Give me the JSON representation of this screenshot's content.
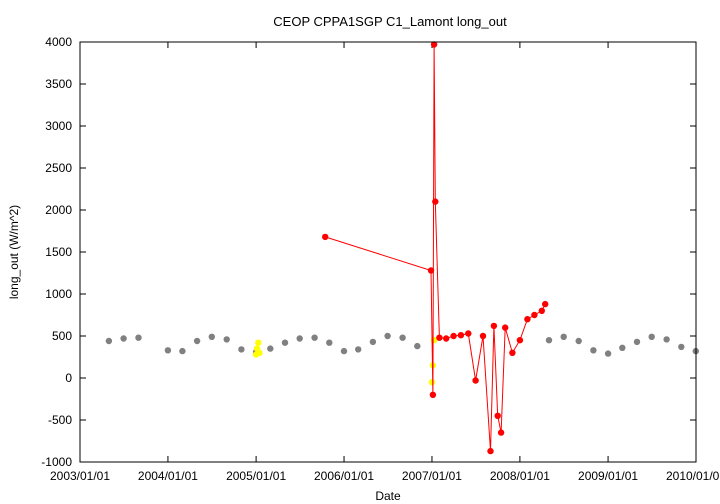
{
  "chart_data": {
    "type": "scatter",
    "title": "CEOP CPPA1SGP C1_Lamont  long_out",
    "xlabel": "Date",
    "ylabel": "long_out (W/m^2)",
    "xlim": [
      "2003/01/01",
      "2010/01/01"
    ],
    "ylim": [
      -1000,
      4000
    ],
    "x_ticks": [
      "2003/01/01",
      "2004/01/01",
      "2005/01/01",
      "2006/01/01",
      "2007/01/01",
      "2008/01/01",
      "2009/01/01",
      "2010/01/01"
    ],
    "y_ticks": [
      -1000,
      -500,
      0,
      500,
      1000,
      1500,
      2000,
      2500,
      3000,
      3500,
      4000
    ],
    "grid": false,
    "legend": "none",
    "colors": {
      "normal": "#808080",
      "flagged_yellow": "#ffff00",
      "flagged_red": "#ff0000"
    },
    "series": [
      {
        "color": "#808080",
        "style": "points",
        "x": [
          "2003/05/01",
          "2003/07/01",
          "2003/09/01",
          "2003/11/01",
          "2004/01/01",
          "2004/03/01",
          "2004/05/01",
          "2004/07/01",
          "2004/09/01",
          "2004/11/01",
          "2005/01/01",
          "2005/03/01",
          "2005/05/01",
          "2005/07/01",
          "2005/09/01",
          "2005/11/01",
          "2006/01/01",
          "2006/03/01",
          "2006/05/01",
          "2006/07/01",
          "2006/09/01",
          "2006/11/01",
          "2008/05/01",
          "2008/07/01",
          "2008/09/01",
          "2008/11/01",
          "2009/01/01",
          "2009/03/01",
          "2009/05/01",
          "2009/07/01",
          "2009/09/01",
          "2009/11/01",
          "2009/12/31"
        ],
        "y": [
          440,
          470,
          480,
          null,
          330,
          320,
          440,
          490,
          460,
          340,
          310,
          350,
          420,
          470,
          480,
          420,
          320,
          340,
          430,
          500,
          480,
          380,
          450,
          490,
          440,
          330,
          290,
          360,
          430,
          490,
          460,
          370,
          320
        ]
      },
      {
        "color": "#ffff00",
        "style": "points",
        "x": [
          "2005/01/01",
          "2005/01/05",
          "2005/01/10",
          "2005/01/15",
          "2007/01/01",
          "2007/01/05",
          "2007/01/10"
        ],
        "y": [
          280,
          350,
          420,
          300,
          -50,
          150,
          450
        ]
      },
      {
        "color": "#ff0000",
        "style": "linespoints",
        "x": [
          "2005/10/15",
          "2006/12/28",
          "2007/01/05",
          "2007/01/10",
          "2007/01/15",
          "2007/02/01",
          "2007/03/01",
          "2007/04/01",
          "2007/05/01",
          "2007/06/01",
          "2007/07/01",
          "2007/08/01",
          "2007/09/01",
          "2007/09/15",
          "2007/10/01",
          "2007/10/15",
          "2007/11/01",
          "2007/12/01",
          "2008/01/01",
          "2008/02/01",
          "2008/03/01",
          "2008/04/01",
          "2008/04/15"
        ],
        "y": [
          1680,
          1280,
          -200,
          3970,
          2100,
          480,
          470,
          500,
          510,
          530,
          -30,
          500,
          -870,
          620,
          -450,
          -650,
          600,
          300,
          450,
          700,
          750,
          800,
          880
        ]
      }
    ]
  }
}
